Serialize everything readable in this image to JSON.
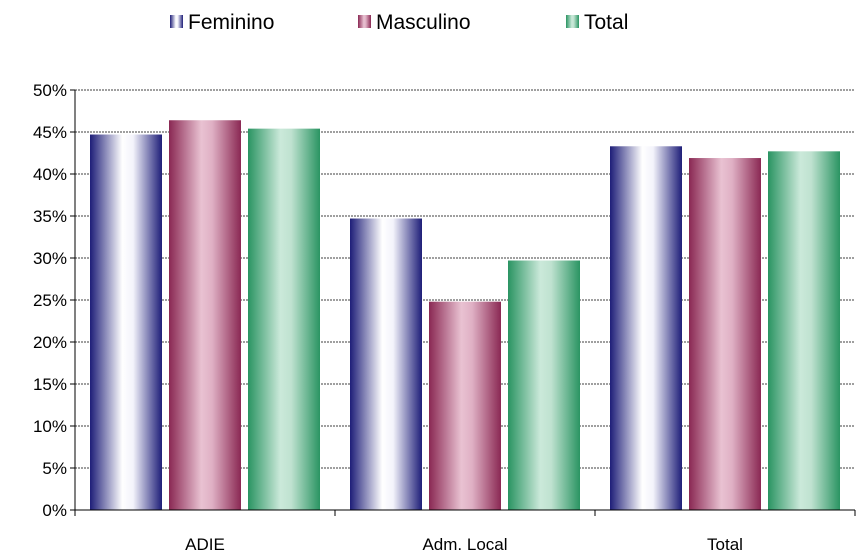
{
  "chart_data": {
    "type": "bar",
    "categories": [
      "ADIE",
      "Adm. Local",
      "Total"
    ],
    "series": [
      {
        "name": "Feminino",
        "values": [
          44.7,
          34.7,
          43.3
        ],
        "color": "#1f1f7a"
      },
      {
        "name": "Masculino",
        "values": [
          46.4,
          24.8,
          41.9
        ],
        "color": "#8c2a55"
      },
      {
        "name": "Total",
        "values": [
          45.4,
          29.7,
          42.7
        ],
        "color": "#2e9a68"
      }
    ],
    "title": "",
    "xlabel": "",
    "ylabel": "",
    "ylim": [
      0,
      50
    ],
    "ytick_step": 5,
    "ytick_format": "percent",
    "grid": true,
    "legend_position": "top-center"
  }
}
